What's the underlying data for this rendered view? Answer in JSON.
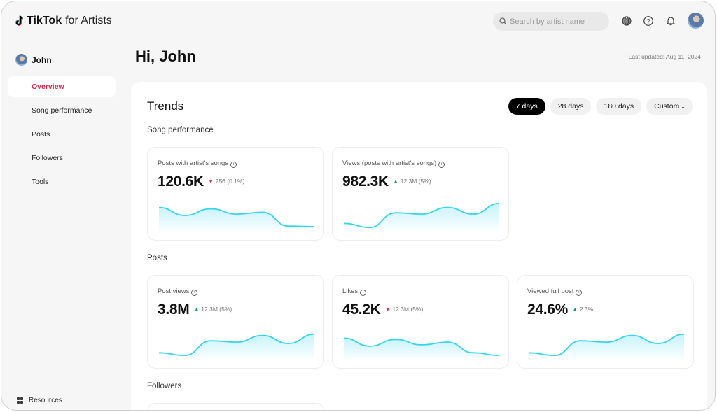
{
  "app": {
    "brand": "TikTok",
    "brand_suffix": "for Artists"
  },
  "header": {
    "search_placeholder": "Search by artist name",
    "icons": [
      "globe-icon",
      "help-icon",
      "bell-icon",
      "avatar"
    ]
  },
  "sidebar": {
    "user": "John",
    "items": [
      {
        "label": "Overview",
        "active": true
      },
      {
        "label": "Song performance"
      },
      {
        "label": "Posts"
      },
      {
        "label": "Followers"
      },
      {
        "label": "Tools"
      }
    ],
    "resources": "Resources"
  },
  "page": {
    "greeting": "Hi, John",
    "last_updated": "Last updated: Aug 11, 2024"
  },
  "trends": {
    "title": "Trends",
    "ranges": [
      "7 days",
      "28 days",
      "180 days",
      "Custom"
    ],
    "selected": "7 days"
  },
  "sections": [
    {
      "title": "Song performance",
      "cards": [
        {
          "label": "Posts with artist's songs",
          "value": "120.6K",
          "delta": "256 (0.1%)",
          "dir": "down",
          "spark": [
            0.8,
            0.5,
            0.75,
            0.55,
            0.62,
            0.1,
            0.08
          ]
        },
        {
          "label": "Views (posts with artist's songs)",
          "value": "982.3K",
          "delta": "12.3M (5%)",
          "dir": "up",
          "spark": [
            0.2,
            0.05,
            0.6,
            0.55,
            0.8,
            0.55,
            0.95
          ]
        }
      ]
    },
    {
      "title": "Posts",
      "cards": [
        {
          "label": "Post views",
          "value": "3.8M",
          "delta": "12.3M (5%)",
          "dir": "up",
          "spark": [
            0.15,
            0.05,
            0.6,
            0.55,
            0.8,
            0.5,
            0.85
          ]
        },
        {
          "label": "Likes",
          "value": "45.2K",
          "delta": "12.3M (5%)",
          "dir": "down",
          "spark": [
            0.7,
            0.4,
            0.65,
            0.45,
            0.55,
            0.15,
            0.05
          ]
        },
        {
          "label": "Viewed full post",
          "value": "24.6%",
          "delta": "2.3%",
          "dir": "up",
          "spark": [
            0.15,
            0.05,
            0.6,
            0.55,
            0.8,
            0.5,
            0.85
          ]
        }
      ]
    },
    {
      "title": "Followers",
      "cards": []
    }
  ],
  "colors": {
    "accent": "#e8224f",
    "up": "#14946c",
    "spark": "#35d4ee"
  }
}
